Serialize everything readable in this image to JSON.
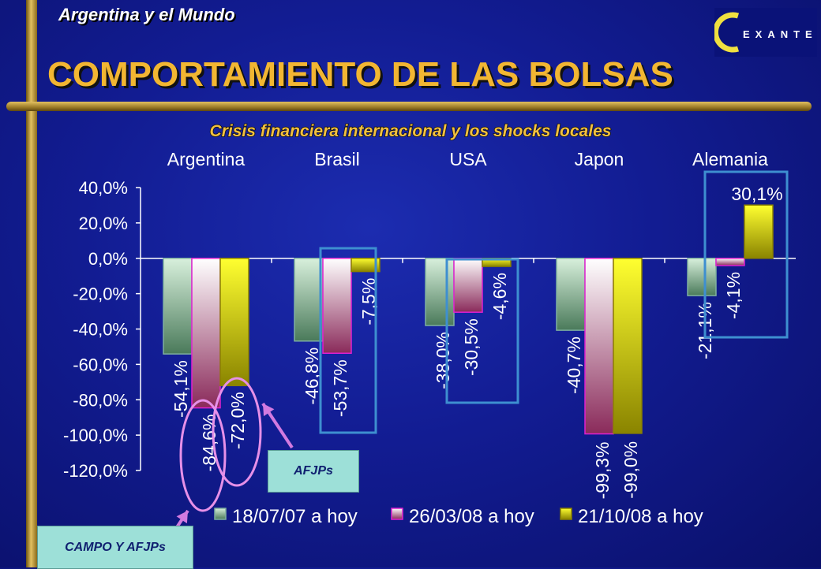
{
  "header": {
    "subtitle": "Argentina y el Mundo",
    "title": "COMPORTAMIENTO DE LAS BOLSAS",
    "logo_text": "EXANTE"
  },
  "callouts": {
    "afjps": "AFJPs",
    "campo": "CAMPO Y AFJPs"
  },
  "colors": {
    "background": "#121c92",
    "title": "#f2b632",
    "series1": "#5a8a6a",
    "series2": "#a0306a",
    "series3": "#d8d000",
    "highlight_box": "#3e8fd0",
    "ellipse": "#e690e8",
    "arrow": "#d27ae0"
  },
  "chart_data": {
    "type": "bar",
    "title": "Crisis financiera internacional y los shocks locales",
    "categories": [
      "Argentina",
      "Brasil",
      "USA",
      "Japon",
      "Alemania"
    ],
    "series": [
      {
        "name": "18/07/07 a hoy",
        "values": [
          -54.1,
          -46.8,
          -38.0,
          -40.7,
          -21.1
        ],
        "labels": [
          "-54,1%",
          "-46,8%",
          "-38,0%",
          "-40,7%",
          "-21,1%"
        ]
      },
      {
        "name": "26/03/08 a hoy",
        "values": [
          -84.6,
          -53.7,
          -30.5,
          -99.3,
          -4.1
        ],
        "labels": [
          "-84,6%",
          "-53,7%",
          "-30,5%",
          "-99,3%",
          "-4,1%"
        ]
      },
      {
        "name": "21/10/08 a hoy",
        "values": [
          -72.0,
          -7.5,
          -4.6,
          -99.0,
          30.1
        ],
        "labels": [
          "-72,0%",
          "-7,5%",
          "-4,6%",
          "-99,0%",
          "30,1%"
        ]
      }
    ],
    "y_ticks": [
      40,
      20,
      0,
      -20,
      -40,
      -60,
      -80,
      -100,
      -120
    ],
    "y_tick_labels": [
      "40,0%",
      "20,0%",
      "0,0%",
      "-20,0%",
      "-40,0%",
      "-60,0%",
      "-80,0%",
      "-100,0%",
      "-120,0%"
    ],
    "ylim": [
      -120,
      40
    ],
    "xlabel": "",
    "ylabel": "",
    "legend_position": "bottom",
    "category_axis_position": "top"
  }
}
